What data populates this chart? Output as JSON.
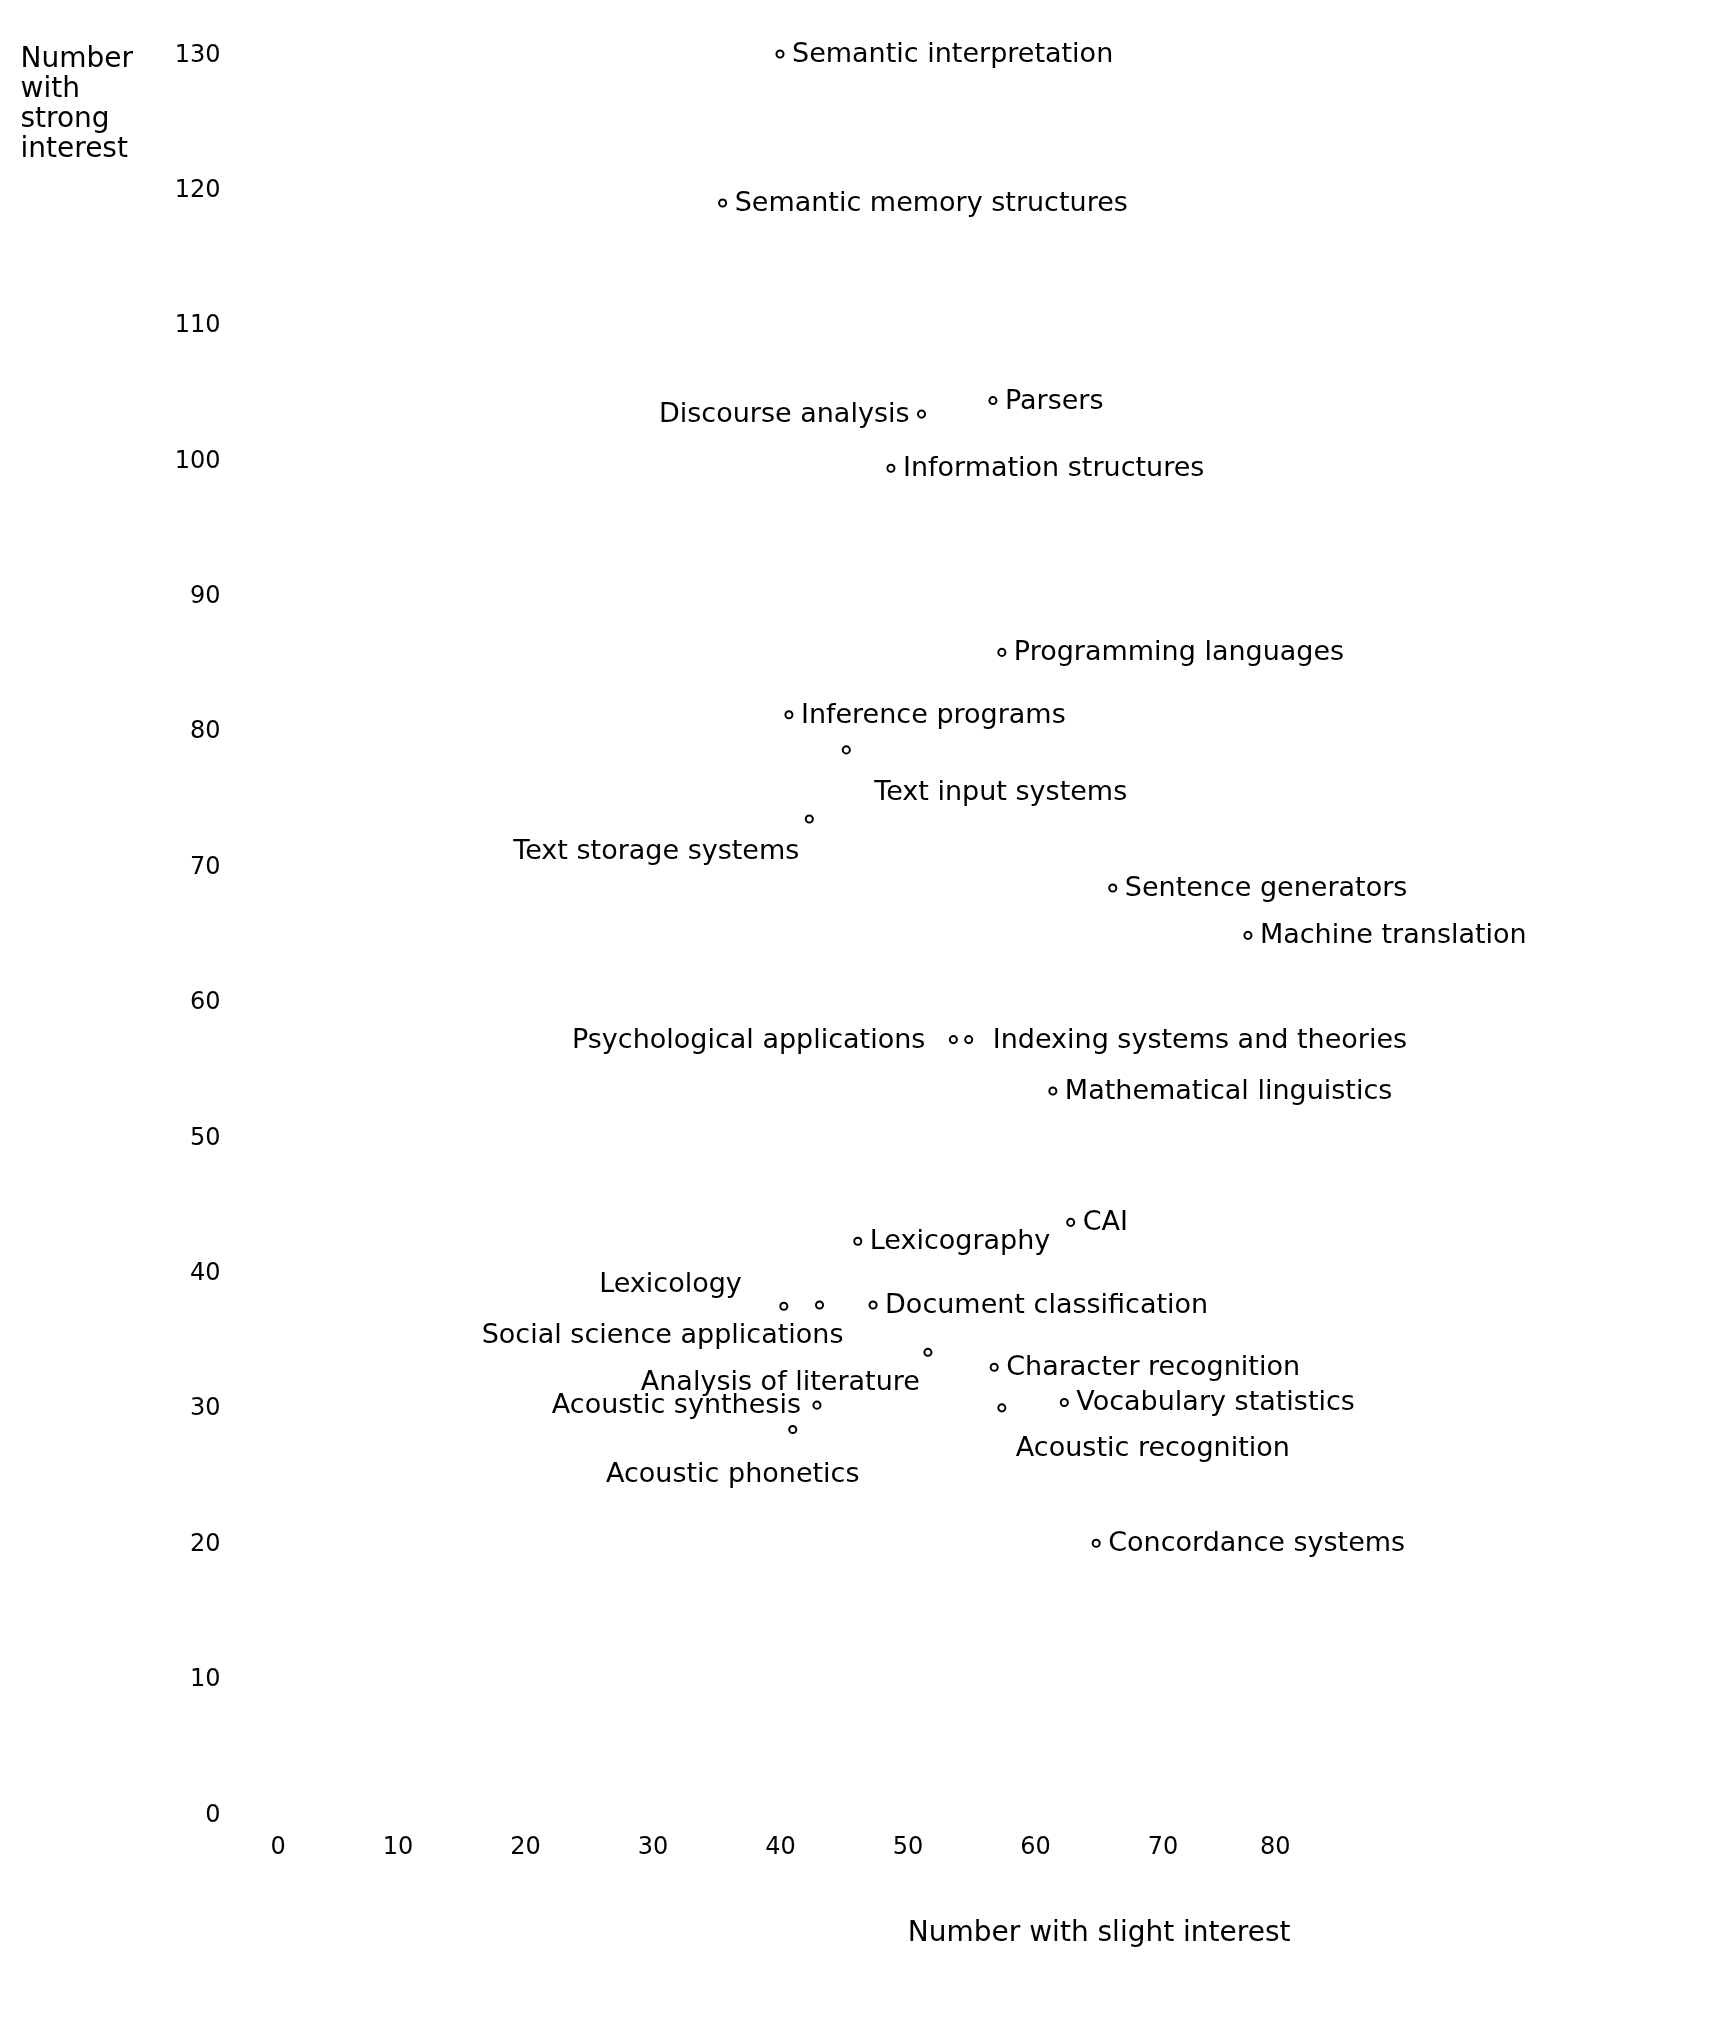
{
  "chart_data": {
    "type": "scatter",
    "xlabel": "Number with slight interest",
    "ylabel": "Number with strong interest",
    "x": [
      40,
      35.5,
      51.1,
      56.7,
      48.7,
      57.4,
      40.7,
      45.2,
      42.3,
      66.1,
      76.7,
      53.6,
      54.8,
      61.4,
      62.8,
      46.1,
      40.3,
      43.1,
      47.3,
      56.8,
      62.3,
      57.4,
      42.9,
      41,
      51.6,
      64.8
    ],
    "values": [
      130,
      119,
      103.4,
      104.4,
      99.4,
      85.8,
      81.2,
      78.6,
      73.5,
      68.4,
      64.9,
      57.2,
      57.2,
      53.4,
      43.7,
      42.3,
      37.5,
      37.6,
      37.6,
      33,
      30.4,
      30,
      30.2,
      28.4,
      34.1,
      20
    ],
    "annotations": [
      {
        "text": "Semantic interpretation",
        "x": 40,
        "y": 130
      },
      {
        "text": "Semantic memory structures",
        "x": 35.5,
        "y": 119
      },
      {
        "text": "Discourse analysis",
        "x": 51.1,
        "y": 103.4
      },
      {
        "text": "Parsers",
        "x": 56.7,
        "y": 104.4
      },
      {
        "text": "Information structures",
        "x": 48.7,
        "y": 99.4
      },
      {
        "text": "Programming languages",
        "x": 57.4,
        "y": 85.8
      },
      {
        "text": "Inference programs",
        "x": 40.7,
        "y": 81.2
      },
      {
        "text": "Text input systems",
        "x": 45.2,
        "y": 78.6
      },
      {
        "text": "Text storage systems",
        "x": 42.3,
        "y": 73.5
      },
      {
        "text": "Sentence generators",
        "x": 66.1,
        "y": 68.4
      },
      {
        "text": "Machine translation",
        "x": 76.7,
        "y": 64.9
      },
      {
        "text": "Psychological applications",
        "x": 53.6,
        "y": 57.2
      },
      {
        "text": "Indexing systems and theories",
        "x": 54.8,
        "y": 57.2
      },
      {
        "text": "Mathematical linguistics",
        "x": 61.4,
        "y": 53.4
      },
      {
        "text": "CAI",
        "x": 62.8,
        "y": 43.7
      },
      {
        "text": "Lexicography",
        "x": 46.1,
        "y": 42.3
      },
      {
        "text": "Lexicology",
        "x": 40.3,
        "y": 37.5
      },
      {
        "text": "Social science applications",
        "x": 43.1,
        "y": 37.6
      },
      {
        "text": "Document classification",
        "x": 47.3,
        "y": 37.6
      },
      {
        "text": "Character recognition",
        "x": 56.8,
        "y": 33
      },
      {
        "text": "Vocabulary statistics",
        "x": 62.3,
        "y": 30.4
      },
      {
        "text": "Acoustic recognition",
        "x": 57.4,
        "y": 30
      },
      {
        "text": "Acoustic synthesis",
        "x": 42.9,
        "y": 30.2
      },
      {
        "text": "Acoustic phonetics",
        "x": 41,
        "y": 28.4
      },
      {
        "text": "Analysis of literature",
        "x": 51.6,
        "y": 34.1
      },
      {
        "text": "Concordance systems",
        "x": 64.8,
        "y": 20
      }
    ],
    "xlim": [
      0,
      80
    ],
    "ylim": [
      0,
      130
    ],
    "xticks": [
      0,
      10,
      20,
      30,
      40,
      50,
      60,
      70,
      80
    ],
    "yticks": [
      0,
      10,
      20,
      30,
      40,
      50,
      60,
      70,
      80,
      90,
      100,
      110,
      120,
      130
    ],
    "grid": false,
    "marker": "circle",
    "color": "#000000"
  }
}
